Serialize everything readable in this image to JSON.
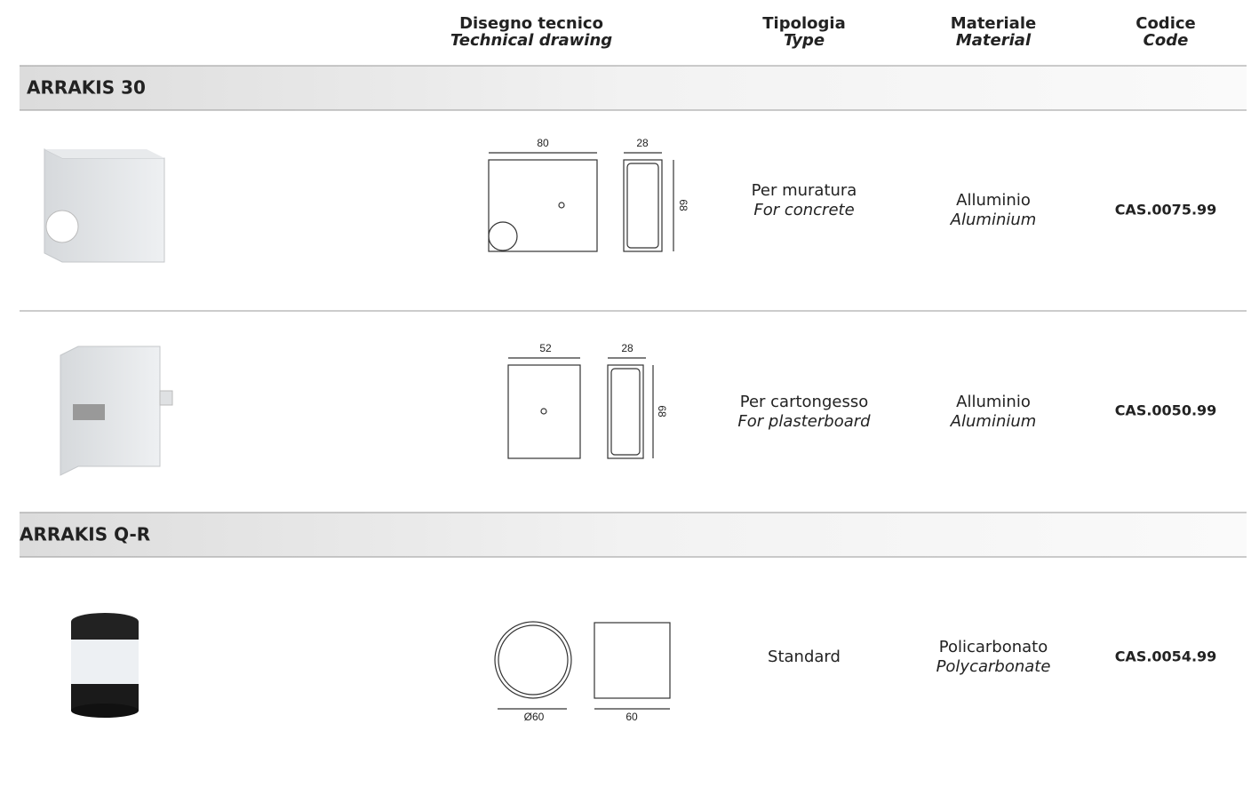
{
  "columns": [
    {
      "it": "Disegno tecnico",
      "en": "Technical drawing"
    },
    {
      "it": "Tipologia",
      "en": "Type"
    },
    {
      "it": "Materiale",
      "en": "Material"
    },
    {
      "it": "Codice",
      "en": "Code"
    }
  ],
  "sections": [
    {
      "title": "ARRAKIS 30",
      "rows": [
        {
          "dims": [
            "80",
            "28",
            "68"
          ],
          "type": {
            "it": "Per muratura",
            "en": "For concrete"
          },
          "material": {
            "it": "Alluminio",
            "en": "Aluminium"
          },
          "code": "CAS.0075.99"
        },
        {
          "dims": [
            "52",
            "28",
            "68"
          ],
          "type": {
            "it": "Per cartongesso",
            "en": "For plasterboard"
          },
          "material": {
            "it": "Alluminio",
            "en": "Aluminium"
          },
          "code": "CAS.0050.99"
        }
      ]
    },
    {
      "title": "ARRAKIS Q-R",
      "rows": [
        {
          "dims": [
            "Ø60",
            "60"
          ],
          "type": {
            "it": "Standard"
          },
          "material": {
            "it": "Policarbonato",
            "en": "Polycarbonate"
          },
          "code": "CAS.0054.99"
        }
      ]
    }
  ]
}
